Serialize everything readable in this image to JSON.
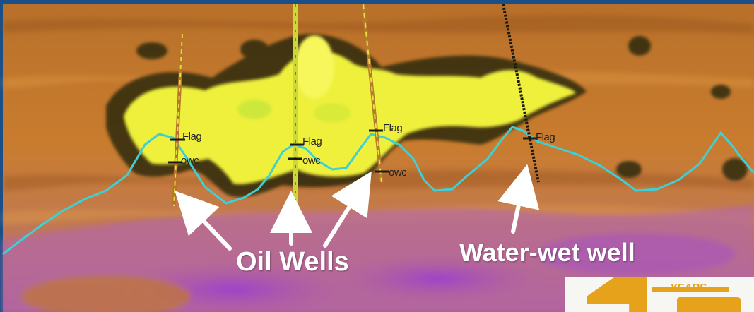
{
  "annotations": {
    "oil_wells_label": "Oil Wells",
    "water_wet_label": "Water-wet well"
  },
  "well_markers": {
    "flag": "Flag",
    "owc": "owc"
  },
  "logo": {
    "years_text": "YEARS"
  },
  "colors": {
    "frame_blue": "#1b4f8a",
    "background_orange": "#c9782a",
    "reservoir_yellow": "#f2f03c",
    "contact_line_cyan": "#3fd0d6",
    "lower_magenta": "#b05aa8",
    "arrow_white": "#ffffff",
    "logo_gold": "#e7a21c"
  }
}
